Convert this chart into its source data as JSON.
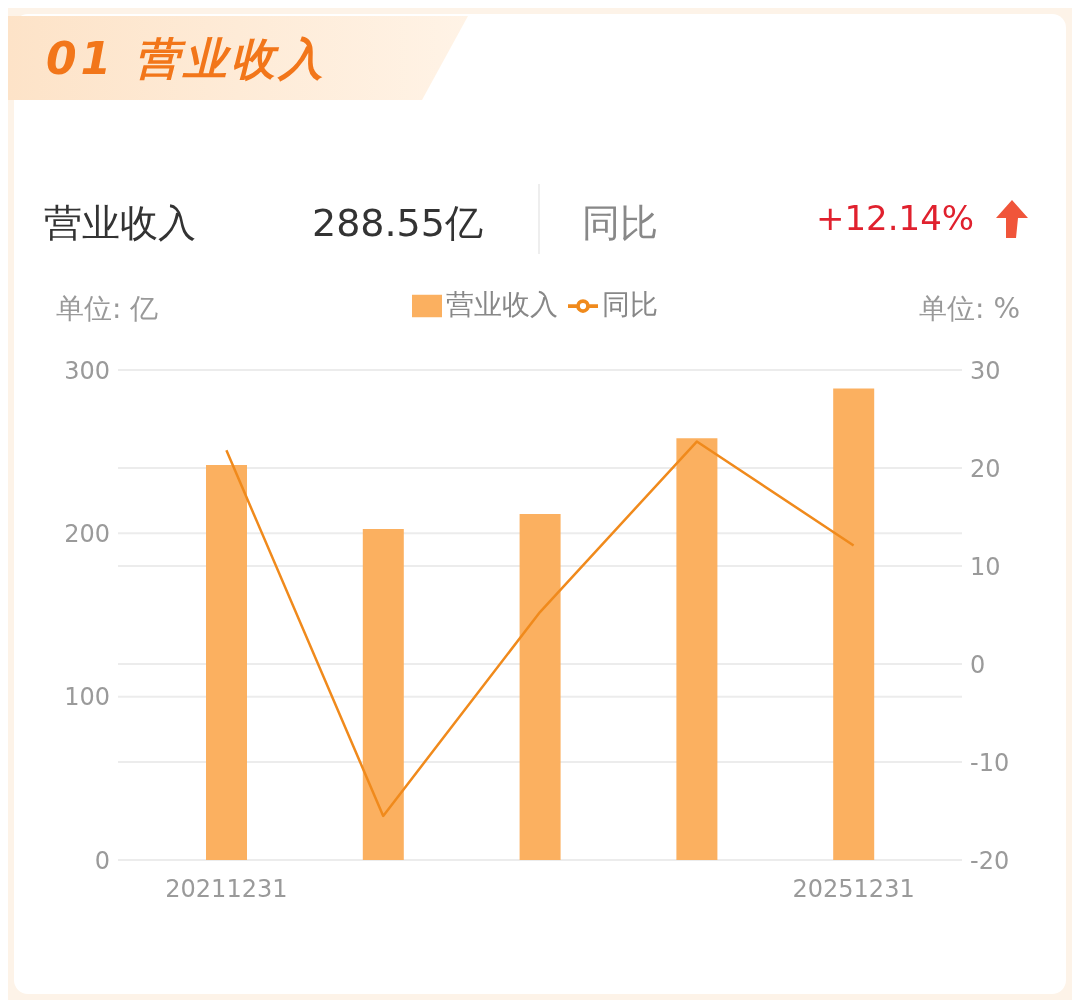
{
  "chart_data": {
    "type": "bar",
    "title": "01 营业收入",
    "annotations": [
      "营业收入",
      "288.55亿",
      "同比",
      "+12.14%"
    ],
    "ylabel": "单位: 亿",
    "y2label": "单位: %",
    "categories": [
      "20211231",
      null,
      null,
      null,
      "20251231"
    ],
    "series": [
      {
        "name": "营业收入",
        "color": "#fbb060",
        "values": [
          241.9,
          202.6,
          211.9,
          258.2,
          288.6
        ]
      },
      {
        "name": "同比",
        "type": "line",
        "axis": "y2",
        "color": "#f08a1c",
        "marker": "none",
        "values": [
          21.8,
          -15.5,
          5.3,
          22.7,
          12.1
        ]
      }
    ],
    "ylim": [
      0,
      300
    ],
    "yticks": [
      0,
      100,
      200,
      300
    ],
    "y2lim": [
      -20,
      30
    ],
    "y2ticks": [
      -20,
      -10,
      0,
      10,
      20,
      30
    ],
    "grid": true,
    "legend": "top"
  }
}
